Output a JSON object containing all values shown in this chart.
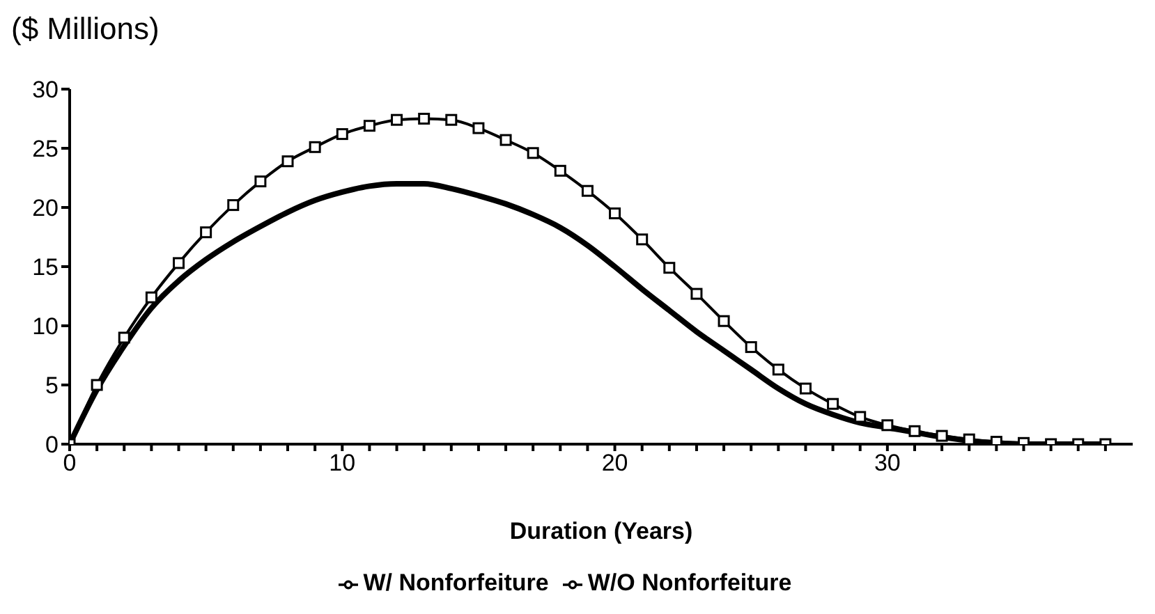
{
  "chart_data": {
    "type": "line",
    "ylabel": "($ Millions)",
    "xlabel": "Duration (Years)",
    "x": [
      0,
      1,
      2,
      3,
      4,
      5,
      6,
      7,
      8,
      9,
      10,
      11,
      12,
      13,
      14,
      15,
      16,
      17,
      18,
      19,
      20,
      21,
      22,
      23,
      24,
      25,
      26,
      27,
      28,
      29,
      30,
      31,
      32,
      33,
      34,
      35,
      36,
      37,
      38
    ],
    "series": [
      {
        "name": "W/ Nonforfeiture",
        "color": "#000000",
        "marker": "square",
        "values": [
          0,
          5,
          9,
          12.4,
          15.3,
          17.9,
          20.2,
          22.2,
          23.9,
          25.1,
          26.2,
          26.9,
          27.4,
          27.5,
          27.4,
          26.7,
          25.7,
          24.6,
          23.1,
          21.4,
          19.5,
          17.3,
          14.9,
          12.7,
          10.4,
          8.2,
          6.3,
          4.7,
          3.4,
          2.3,
          1.6,
          1.1,
          0.7,
          0.4,
          0.2,
          0.1,
          0,
          0,
          0
        ]
      },
      {
        "name": "W/O Nonforfeiture",
        "color": "#000000",
        "marker": "none",
        "values": [
          0,
          4.6,
          8.3,
          11.5,
          13.8,
          15.6,
          17.1,
          18.4,
          19.6,
          20.6,
          21.3,
          21.8,
          22,
          22,
          21.6,
          21,
          20.3,
          19.4,
          18.3,
          16.8,
          15,
          13.1,
          11.3,
          9.5,
          7.9,
          6.3,
          4.7,
          3.4,
          2.5,
          1.8,
          1.4,
          1,
          0.6,
          0.3,
          0.1,
          0,
          0,
          0,
          0
        ]
      }
    ],
    "xlim": [
      0,
      39
    ],
    "xticks": [
      0,
      {
        "value": 1,
        "label": null
      },
      {
        "value": 2,
        "label": null
      },
      {
        "value": 3,
        "label": null
      },
      {
        "value": 4,
        "label": null
      },
      {
        "value": 5,
        "label": null
      },
      {
        "value": 6,
        "label": null
      },
      {
        "value": 7,
        "label": null
      },
      {
        "value": 8,
        "label": null
      },
      {
        "value": 9,
        "label": null
      },
      10,
      {
        "value": 11,
        "label": null
      },
      {
        "value": 12,
        "label": null
      },
      {
        "value": 13,
        "label": null
      },
      {
        "value": 14,
        "label": null
      },
      {
        "value": 15,
        "label": null
      },
      {
        "value": 16,
        "label": null
      },
      {
        "value": 17,
        "label": null
      },
      {
        "value": 18,
        "label": null
      },
      {
        "value": 19,
        "label": null
      },
      20,
      {
        "value": 21,
        "label": null
      },
      {
        "value": 22,
        "label": null
      },
      {
        "value": 23,
        "label": null
      },
      {
        "value": 24,
        "label": null
      },
      {
        "value": 25,
        "label": null
      },
      {
        "value": 26,
        "label": null
      },
      {
        "value": 27,
        "label": null
      },
      {
        "value": 28,
        "label": null
      },
      {
        "value": 29,
        "label": null
      },
      30,
      {
        "value": 31,
        "label": null
      },
      {
        "value": 32,
        "label": null
      },
      {
        "value": 33,
        "label": null
      },
      {
        "value": 34,
        "label": null
      },
      {
        "value": 35,
        "label": null
      },
      {
        "value": 36,
        "label": null
      },
      {
        "value": 37,
        "label": null
      },
      {
        "value": 38,
        "label": null
      }
    ],
    "ylim": [
      0,
      30
    ],
    "yticks": [
      0,
      5,
      10,
      15,
      20,
      25,
      30
    ],
    "grid": false,
    "legend": "bottom",
    "line_style": "solid"
  }
}
